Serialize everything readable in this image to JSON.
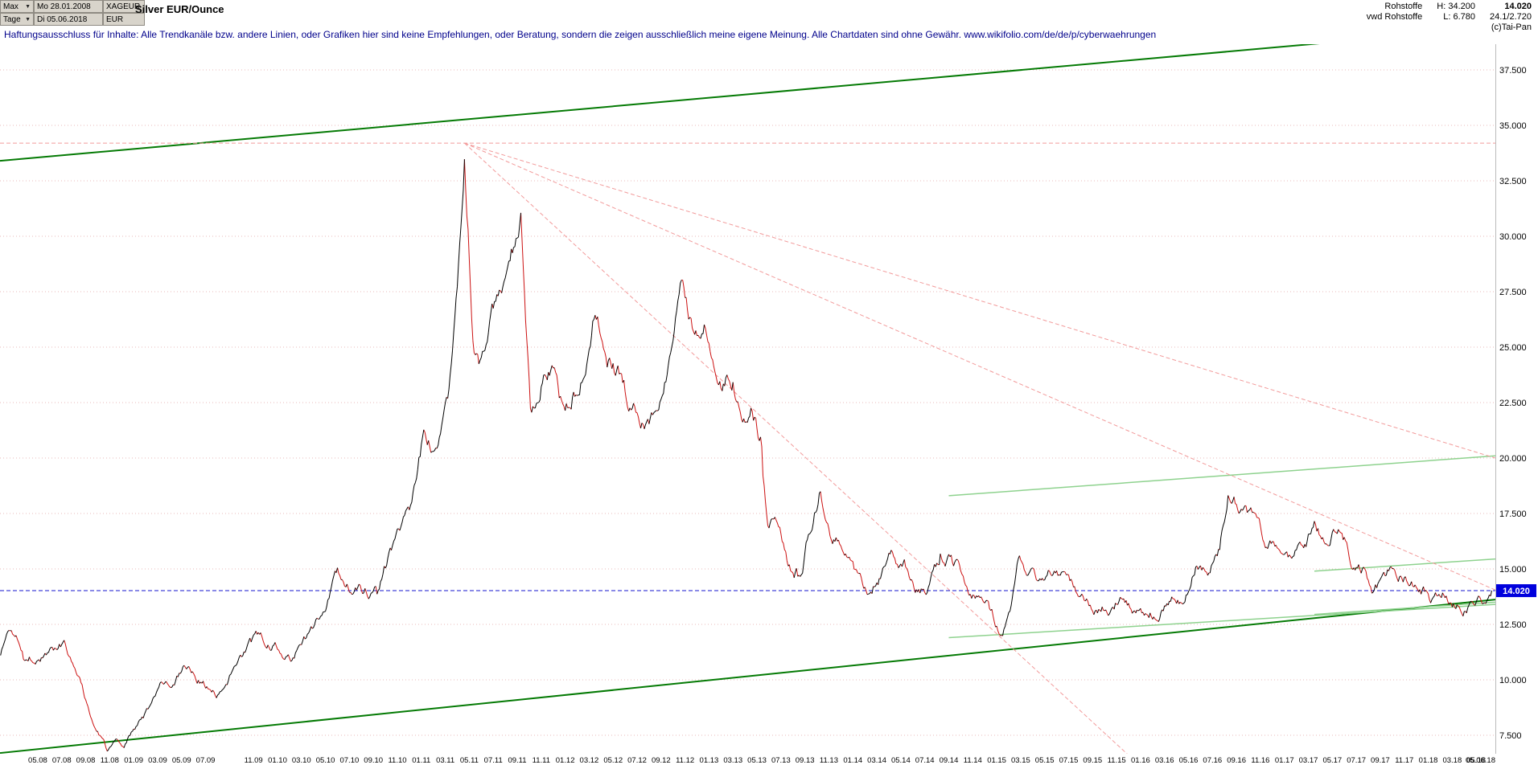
{
  "header": {
    "range_selector": "Max",
    "period_selector": "Tage",
    "start_date": "Mo 28.01.2008",
    "end_date": "Di 05.06.2018",
    "symbol": "XAGEUR",
    "currency": "EUR",
    "title": "Silver EUR/Ounce",
    "info": {
      "group": "Rohstoffe",
      "high": "H: 34.200",
      "last": "14.020",
      "feed": "vwd Rohstoffe",
      "low": "L: 6.780",
      "prev_range": "24.1/2.720",
      "copyright": "(c)Tai-Pan"
    }
  },
  "disclaimer": "Haftungsausschluss für Inhalte: Alle Trendkanäle bzw. andere Linien, oder Grafiken hier sind keine Empfehlungen, oder Beratung, sondern die zeigen ausschließlich meine eigene Meinung. Alle Chartdaten sind ohne Gewähr.  www.wikifolio.com/de/de/p/cyberwaehrungen",
  "chart_data": {
    "type": "line",
    "title": "Silver EUR/Ounce",
    "ylabel": "EUR",
    "x_unit": "months since 2008-01",
    "x_range": [
      0.85,
      125.6
    ],
    "high": 34.2,
    "low": 6.78,
    "last": 14.02,
    "grid_color": "#e9b9b9",
    "y_axis": {
      "ticks": [
        37.5,
        35,
        32.5,
        30,
        27.5,
        25,
        22.5,
        20,
        17.5,
        15,
        12.5,
        10,
        7.5
      ],
      "labels": [
        "37.500",
        "35.000",
        "32.500",
        "30.000",
        "27.500",
        "25.000",
        "22.500",
        "20.000",
        "17.500",
        "15.000",
        "12.500",
        "10.000",
        "7.500"
      ]
    },
    "x_ticks": [
      [
        4,
        "05.08"
      ],
      [
        6,
        "07.08"
      ],
      [
        8,
        "09.08"
      ],
      [
        10,
        "11.08"
      ],
      [
        12,
        "01.09"
      ],
      [
        14,
        "03.09"
      ],
      [
        16,
        "05.09"
      ],
      [
        18,
        "07.09"
      ],
      [
        22,
        "11.09"
      ],
      [
        24,
        "01.10"
      ],
      [
        26,
        "03.10"
      ],
      [
        28,
        "05.10"
      ],
      [
        30,
        "07.10"
      ],
      [
        32,
        "09.10"
      ],
      [
        34,
        "11.10"
      ],
      [
        36,
        "01.11"
      ],
      [
        38,
        "03.11"
      ],
      [
        40,
        "05.11"
      ],
      [
        42,
        "07.11"
      ],
      [
        44,
        "09.11"
      ],
      [
        46,
        "11.11"
      ],
      [
        48,
        "01.12"
      ],
      [
        50,
        "03.12"
      ],
      [
        52,
        "05.12"
      ],
      [
        54,
        "07.12"
      ],
      [
        56,
        "09.12"
      ],
      [
        58,
        "11.12"
      ],
      [
        60,
        "01.13"
      ],
      [
        62,
        "03.13"
      ],
      [
        64,
        "05.13"
      ],
      [
        66,
        "07.13"
      ],
      [
        68,
        "09.13"
      ],
      [
        70,
        "11.13"
      ],
      [
        72,
        "01.14"
      ],
      [
        74,
        "03.14"
      ],
      [
        76,
        "05.14"
      ],
      [
        78,
        "07.14"
      ],
      [
        80,
        "09.14"
      ],
      [
        82,
        "11.14"
      ],
      [
        84,
        "01.15"
      ],
      [
        86,
        "03.15"
      ],
      [
        88,
        "05.15"
      ],
      [
        90,
        "07.15"
      ],
      [
        92,
        "09.15"
      ],
      [
        94,
        "11.15"
      ],
      [
        96,
        "01.16"
      ],
      [
        98,
        "03.16"
      ],
      [
        100,
        "05.16"
      ],
      [
        102,
        "07.16"
      ],
      [
        104,
        "09.16"
      ],
      [
        106,
        "11.16"
      ],
      [
        108,
        "01.17"
      ],
      [
        110,
        "03.17"
      ],
      [
        112,
        "05.17"
      ],
      [
        114,
        "07.17"
      ],
      [
        116,
        "09.17"
      ],
      [
        118,
        "11.17"
      ],
      [
        120,
        "01.18"
      ],
      [
        122,
        "03.18"
      ],
      [
        124,
        "05.18"
      ],
      [
        125.6,
        "05.06.18",
        "end"
      ]
    ],
    "series": [
      {
        "name": "XAGEUR Silver EUR/Ounce",
        "up_color": "#000000",
        "down_color": "#cc1111",
        "points": [
          [
            0.9,
            11.2
          ],
          [
            1.6,
            12.3
          ],
          [
            2.4,
            11.9
          ],
          [
            3.2,
            11.1
          ],
          [
            4.2,
            11.0
          ],
          [
            5.2,
            11.4
          ],
          [
            6.2,
            11.7
          ],
          [
            7.2,
            10.6
          ],
          [
            8.2,
            8.8
          ],
          [
            9.0,
            7.8
          ],
          [
            9.8,
            6.9
          ],
          [
            10.5,
            7.6
          ],
          [
            11.2,
            7.0
          ],
          [
            12.2,
            7.9
          ],
          [
            13.2,
            8.5
          ],
          [
            14.2,
            9.9
          ],
          [
            15.2,
            9.5
          ],
          [
            16.2,
            10.6
          ],
          [
            17.5,
            10.0
          ],
          [
            19.0,
            9.4
          ],
          [
            20.2,
            10.4
          ],
          [
            21.2,
            11.2
          ],
          [
            22.6,
            12.0
          ],
          [
            24.0,
            11.5
          ],
          [
            25.2,
            11.0
          ],
          [
            26.4,
            11.9
          ],
          [
            27.6,
            13.0
          ],
          [
            29.0,
            14.7
          ],
          [
            30.2,
            14.1
          ],
          [
            31.6,
            14.0
          ],
          [
            33.0,
            15.3
          ],
          [
            34.2,
            16.5
          ],
          [
            35.2,
            18.0
          ],
          [
            36.2,
            21.2
          ],
          [
            37.2,
            20.0
          ],
          [
            38.2,
            22.0
          ],
          [
            39.0,
            27.5
          ],
          [
            39.6,
            34.2
          ],
          [
            40.3,
            26.0
          ],
          [
            40.8,
            24.2
          ],
          [
            41.6,
            25.5
          ],
          [
            42.6,
            27.6
          ],
          [
            43.6,
            29.3
          ],
          [
            44.3,
            30.6
          ],
          [
            45.1,
            21.8
          ],
          [
            46.0,
            23.6
          ],
          [
            47.0,
            24.6
          ],
          [
            48.0,
            21.6
          ],
          [
            49.2,
            23.4
          ],
          [
            50.4,
            26.8
          ],
          [
            51.5,
            24.6
          ],
          [
            52.5,
            23.8
          ],
          [
            53.5,
            22.4
          ],
          [
            54.6,
            21.4
          ],
          [
            55.6,
            22.3
          ],
          [
            56.6,
            24.6
          ],
          [
            57.6,
            27.2
          ],
          [
            58.6,
            26.2
          ],
          [
            59.6,
            26.0
          ],
          [
            60.6,
            23.2
          ],
          [
            61.6,
            23.5
          ],
          [
            62.6,
            21.9
          ],
          [
            63.6,
            22.3
          ],
          [
            64.4,
            20.8
          ],
          [
            64.9,
            17.8
          ],
          [
            65.6,
            17.4
          ],
          [
            66.6,
            15.2
          ],
          [
            67.1,
            14.8
          ],
          [
            67.8,
            15.2
          ],
          [
            68.8,
            17.6
          ],
          [
            69.3,
            18.7
          ],
          [
            70.2,
            16.6
          ],
          [
            71.2,
            16.2
          ],
          [
            72.2,
            15.0
          ],
          [
            73.2,
            14.3
          ],
          [
            74.2,
            14.7
          ],
          [
            75.2,
            15.8
          ],
          [
            76.2,
            15.2
          ],
          [
            77.2,
            14.3
          ],
          [
            78.2,
            14.1
          ],
          [
            79.2,
            15.3
          ],
          [
            80.2,
            15.5
          ],
          [
            81.2,
            14.8
          ],
          [
            82.2,
            13.7
          ],
          [
            83.2,
            13.6
          ],
          [
            84.0,
            12.5
          ],
          [
            84.4,
            11.95
          ],
          [
            85.2,
            13.0
          ],
          [
            85.8,
            15.5
          ],
          [
            86.6,
            14.9
          ],
          [
            87.6,
            14.6
          ],
          [
            88.6,
            15.1
          ],
          [
            89.6,
            14.8
          ],
          [
            90.6,
            14.2
          ],
          [
            91.6,
            13.5
          ],
          [
            92.6,
            13.1
          ],
          [
            93.6,
            13.3
          ],
          [
            94.6,
            14.0
          ],
          [
            95.6,
            13.2
          ],
          [
            96.6,
            12.9
          ],
          [
            97.6,
            13.1
          ],
          [
            98.6,
            13.8
          ],
          [
            99.6,
            13.7
          ],
          [
            100.6,
            15.1
          ],
          [
            101.6,
            14.7
          ],
          [
            102.6,
            15.9
          ],
          [
            103.3,
            18.5
          ],
          [
            104.0,
            17.9
          ],
          [
            104.6,
            17.6
          ],
          [
            105.6,
            17.2
          ],
          [
            106.6,
            16.1
          ],
          [
            107.6,
            15.9
          ],
          [
            108.6,
            15.5
          ],
          [
            109.6,
            16.0
          ],
          [
            110.6,
            16.9
          ],
          [
            111.6,
            16.4
          ],
          [
            112.6,
            17.0
          ],
          [
            113.6,
            15.5
          ],
          [
            114.6,
            15.1
          ],
          [
            115.3,
            13.9
          ],
          [
            116.2,
            14.6
          ],
          [
            117.2,
            15.3
          ],
          [
            118.2,
            14.5
          ],
          [
            119.2,
            14.3
          ],
          [
            120.2,
            13.7
          ],
          [
            121.2,
            14.2
          ],
          [
            122.2,
            13.6
          ],
          [
            123.2,
            13.3
          ],
          [
            124.2,
            13.6
          ],
          [
            124.9,
            13.5
          ],
          [
            125.3,
            14.02
          ]
        ]
      }
    ],
    "trend_lines": [
      {
        "name": "upper-channel",
        "color": "#047a04",
        "width": 2,
        "dash": "",
        "from": [
          0.85,
          33.4
        ],
        "to": [
          125.6,
          39.4
        ]
      },
      {
        "name": "lower-channel",
        "color": "#047a04",
        "width": 2,
        "dash": "",
        "from": [
          0.85,
          6.7
        ],
        "to": [
          125.6,
          13.62
        ]
      },
      {
        "name": "mid-resistance",
        "color": "#8ed28e",
        "width": 1.5,
        "dash": "",
        "from": [
          80,
          18.3
        ],
        "to": [
          125.6,
          20.1
        ]
      },
      {
        "name": "mid-support",
        "color": "#8ed28e",
        "width": 1.5,
        "dash": "",
        "from": [
          80,
          11.9
        ],
        "to": [
          125.6,
          13.4
        ]
      },
      {
        "name": "recent-upper",
        "color": "#8ed28e",
        "width": 1.5,
        "dash": "",
        "from": [
          110.5,
          14.9
        ],
        "to": [
          125.6,
          15.45
        ]
      },
      {
        "name": "recent-lower",
        "color": "#8ed28e",
        "width": 1.5,
        "dash": "",
        "from": [
          110.5,
          12.95
        ],
        "to": [
          125.6,
          13.5
        ]
      },
      {
        "name": "fan-line-1",
        "color": "#f29a9a",
        "width": 1,
        "dash": "5 3",
        "from": [
          39.6,
          34.2
        ],
        "to": [
          125.6,
          20.0
        ]
      },
      {
        "name": "fan-line-2",
        "color": "#f29a9a",
        "width": 1,
        "dash": "5 3",
        "from": [
          39.6,
          34.2
        ],
        "to": [
          125.6,
          14.05
        ]
      },
      {
        "name": "fan-line-3",
        "color": "#f29a9a",
        "width": 1,
        "dash": "5 3",
        "from": [
          39.6,
          34.2
        ],
        "to": [
          95,
          6.6
        ]
      },
      {
        "name": "peak-level-line",
        "color": "#f29a9a",
        "width": 1,
        "dash": "5 3",
        "from": [
          0.85,
          34.2
        ],
        "to": [
          125.6,
          34.2
        ]
      }
    ],
    "current_price_line": {
      "price": 14.02,
      "label": "14.020",
      "color": "#1515cf",
      "label_bg": "#0000dd",
      "label_fg": "#ffffff"
    }
  }
}
